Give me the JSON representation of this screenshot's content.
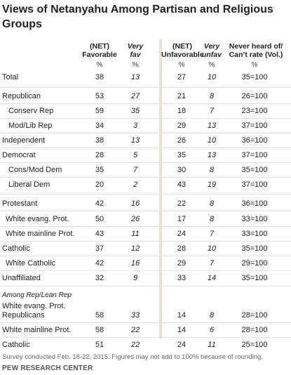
{
  "title": "Views of Netanyahu Among Partisan and Religious Groups",
  "columns": {
    "net_fav_line1": "(NET)",
    "net_fav_line2": "Favorable",
    "very_fav_line1": "Very",
    "very_fav_line2": "fav",
    "net_unfav_line1": "(NET)",
    "net_unfav_line2": "Unfavorable",
    "very_unfav_line1": "Very",
    "very_unfav_line2": "unfav",
    "never_line1": "Never heard of/",
    "never_line2": "Can’t rate (Vol.)",
    "pct_symbol": "%"
  },
  "rows": [
    {
      "label": "Total",
      "fav": "38",
      "very_fav": "13",
      "unfav": "27",
      "very_unfav": "10",
      "never": "35=100"
    },
    {
      "label": "Republican",
      "fav": "53",
      "very_fav": "27",
      "unfav": "21",
      "very_unfav": "8",
      "never": "26=100"
    },
    {
      "label": "Conserv Rep",
      "fav": "59",
      "very_fav": "35",
      "unfav": "18",
      "very_unfav": "7",
      "never": "23=100"
    },
    {
      "label": "Mod/Lib Rep",
      "fav": "34",
      "very_fav": "3",
      "unfav": "29",
      "very_unfav": "13",
      "never": "37=100"
    },
    {
      "label": "Independent",
      "fav": "38",
      "very_fav": "13",
      "unfav": "26",
      "very_unfav": "10",
      "never": "36=100"
    },
    {
      "label": "Democrat",
      "fav": "28",
      "very_fav": "5",
      "unfav": "35",
      "very_unfav": "13",
      "never": "37=100"
    },
    {
      "label": "Cons/Mod Dem",
      "fav": "35",
      "very_fav": "7",
      "unfav": "30",
      "very_unfav": "8",
      "never": "35=100"
    },
    {
      "label": "Liberal Dem",
      "fav": "20",
      "very_fav": "2",
      "unfav": "43",
      "very_unfav": "19",
      "never": "37=100"
    },
    {
      "label": "Protestant",
      "fav": "42",
      "very_fav": "16",
      "unfav": "22",
      "very_unfav": "8",
      "never": "36=100"
    },
    {
      "label": "White evang. Prot.",
      "fav": "50",
      "very_fav": "26",
      "unfav": "17",
      "very_unfav": "8",
      "never": "33=100"
    },
    {
      "label": "White mainline Prot.",
      "fav": "43",
      "very_fav": "11",
      "unfav": "24",
      "very_unfav": "7",
      "never": "33=100"
    },
    {
      "label": "Catholic",
      "fav": "37",
      "very_fav": "12",
      "unfav": "28",
      "very_unfav": "10",
      "never": "35=100"
    },
    {
      "label": "White Catholic",
      "fav": "42",
      "very_fav": "16",
      "unfav": "29",
      "very_unfav": "7",
      "never": "29=100"
    },
    {
      "label": "Unaffiliated",
      "fav": "32",
      "very_fav": "9",
      "unfav": "33",
      "very_unfav": "14",
      "never": "35=100"
    }
  ],
  "subgroup_label": "Among Rep/Lean Rep",
  "subgroup_rows": [
    {
      "label_line1": "White evang. Prot.",
      "label_line2": "Republicans",
      "fav": "58",
      "very_fav": "33",
      "unfav": "14",
      "very_unfav": "8",
      "never": "28=100"
    },
    {
      "label": "White mainline Prot.",
      "fav": "58",
      "very_fav": "22",
      "unfav": "14",
      "very_unfav": "6",
      "never": "28=100"
    },
    {
      "label": "Catholic",
      "fav": "51",
      "very_fav": "22",
      "unfav": "24",
      "very_unfav": "11",
      "never": "25=100"
    }
  ],
  "note": "Survey conducted Feb. 18-22, 2015. Figures may not add to 100% because of rounding.",
  "source": "PEW RESEARCH CENTER"
}
